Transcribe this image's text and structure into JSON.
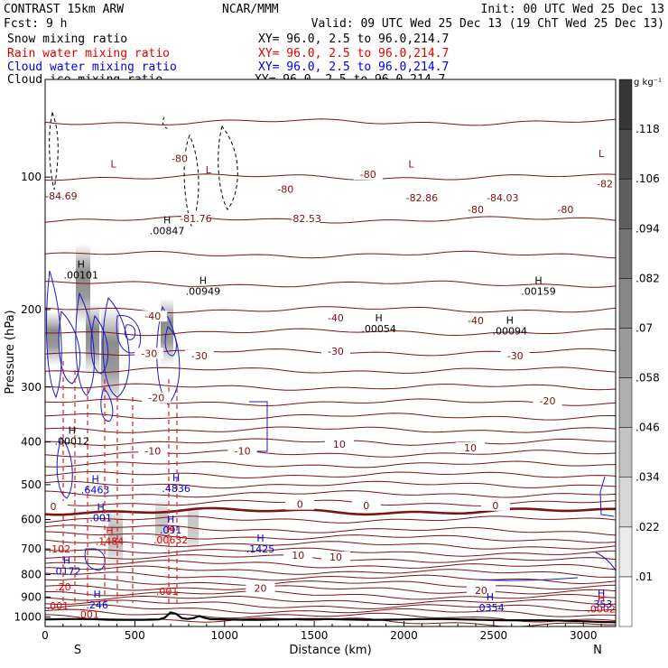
{
  "header": {
    "title": "CONTRAST 15km ARW",
    "forecast": "Fcst:    9 h",
    "center": "NCAR/MMM",
    "init": "Init: 00 UTC Wed 25 Dec 13",
    "valid": "Valid: 09 UTC Wed 25 Dec 13 (19 ChT Wed 25 Dec 13)",
    "fields": [
      {
        "name": "Snow mixing ratio",
        "xy": "XY=  96.0,  2.5 to  96.0,214.7",
        "color": "#000000"
      },
      {
        "name": "Rain water mixing ratio",
        "xy": "XY=  96.0,  2.5 to  96.0,214.7",
        "color": "#e00000"
      },
      {
        "name": "Cloud water mixing ratio",
        "xy": "XY=  96.0,  2.5 to  96.0,214.7",
        "color": "#0000dd"
      },
      {
        "name": "Cloud ice mixing ratio",
        "xy": "XY=  96.0,  2.5 to  96.0,214.7",
        "color": "#000000"
      }
    ]
  },
  "colorbar": {
    "unit": "g kg⁻¹",
    "levels": [
      ".01",
      ".022",
      ".034",
      ".046",
      ".058",
      ".07",
      ".082",
      ".094",
      ".106",
      ".118"
    ]
  },
  "chart_data": {
    "type": "contour-cross-section",
    "xlabel": "Distance (km)",
    "ylabel": "Pressure (hPa)",
    "xlim": [
      0,
      3180
    ],
    "ylim": [
      1050,
      60
    ],
    "xticks": [
      0,
      500,
      1000,
      1500,
      2000,
      2500,
      3000
    ],
    "yticks": [
      100,
      200,
      300,
      400,
      500,
      600,
      700,
      800,
      900,
      1000
    ],
    "endpoints": {
      "left": "S",
      "right": "N"
    },
    "temperature_contours": [
      {
        "label": "-80",
        "p": 100
      },
      {
        "label": "-40",
        "p": 210
      },
      {
        "label": "-30",
        "p": 255
      },
      {
        "label": "-20",
        "p": 320
      },
      {
        "label": "-10",
        "p": 415
      },
      {
        "label": "0",
        "p": 560,
        "bold": true
      },
      {
        "label": "10",
        "p": 735
      },
      {
        "label": "20",
        "p": 860
      }
    ],
    "temperature_labels": [
      {
        "text": "-84.69",
        "x": 90,
        "p": 112,
        "color": "#7a1010"
      },
      {
        "text": "-81.76",
        "x": 840,
        "p": 126,
        "color": "#7a1010"
      },
      {
        "text": "-82.53",
        "x": 1450,
        "p": 126,
        "color": "#7a1010"
      },
      {
        "text": "-82.86",
        "x": 2100,
        "p": 113,
        "color": "#7a1010"
      },
      {
        "text": "-84.03",
        "x": 2550,
        "p": 113,
        "color": "#7a1010"
      },
      {
        "text": "-82",
        "x": 3120,
        "p": 105,
        "color": "#7a1010"
      },
      {
        "text": "-80",
        "x": 750,
        "p": 92,
        "color": "#7a1010"
      },
      {
        "text": "-80",
        "x": 1340,
        "p": 108,
        "color": "#7a1010"
      },
      {
        "text": "-80",
        "x": 1800,
        "p": 100,
        "color": "#7a1010"
      },
      {
        "text": "-80",
        "x": 2400,
        "p": 120,
        "color": "#7a1010"
      },
      {
        "text": "-80",
        "x": 2900,
        "p": 120,
        "color": "#7a1010"
      },
      {
        "text": "-40",
        "x": 600,
        "p": 210,
        "color": "#7a1010"
      },
      {
        "text": "-40",
        "x": 1620,
        "p": 212,
        "color": "#7a1010"
      },
      {
        "text": "-40",
        "x": 2400,
        "p": 215,
        "color": "#7a1010"
      },
      {
        "text": "-30",
        "x": 580,
        "p": 255,
        "color": "#7a1010"
      },
      {
        "text": "-30",
        "x": 860,
        "p": 258,
        "color": "#7a1010"
      },
      {
        "text": "-30",
        "x": 1620,
        "p": 252,
        "color": "#7a1010"
      },
      {
        "text": "-30",
        "x": 2620,
        "p": 258,
        "color": "#7a1010"
      },
      {
        "text": "-20",
        "x": 620,
        "p": 322,
        "color": "#7a1010"
      },
      {
        "text": "-20",
        "x": 2800,
        "p": 327,
        "color": "#7a1010"
      },
      {
        "text": "-10",
        "x": 600,
        "p": 425,
        "color": "#7a1010"
      },
      {
        "text": "-10",
        "x": 1100,
        "p": 425,
        "color": "#7a1010"
      },
      {
        "text": "10",
        "x": 1640,
        "p": 410,
        "color": "#7a1010"
      },
      {
        "text": "10",
        "x": 2370,
        "p": 418,
        "color": "#7a1010"
      },
      {
        "text": "0",
        "x": 45,
        "p": 568,
        "color": "#7a1010"
      },
      {
        "text": "0",
        "x": 1420,
        "p": 562,
        "color": "#7a1010"
      },
      {
        "text": "0",
        "x": 1790,
        "p": 565,
        "color": "#7a1010"
      },
      {
        "text": "0",
        "x": 2510,
        "p": 565,
        "color": "#7a1010"
      },
      {
        "text": "10",
        "x": 1410,
        "p": 733,
        "color": "#7a1010"
      },
      {
        "text": "10",
        "x": 1620,
        "p": 740,
        "color": "#7a1010"
      },
      {
        "text": "20",
        "x": 1200,
        "p": 872,
        "color": "#7a1010"
      },
      {
        "text": "20",
        "x": 2430,
        "p": 882,
        "color": "#7a1010"
      }
    ],
    "maxima": [
      {
        "label": "H",
        "value": ".00101",
        "x": 200,
        "p": 170,
        "color": "#000000"
      },
      {
        "label": "H",
        "value": ".00847",
        "x": 680,
        "p": 135,
        "color": "#000000"
      },
      {
        "label": "H",
        "value": ".00949",
        "x": 880,
        "p": 185,
        "color": "#000000"
      },
      {
        "label": "H",
        "value": ".00054",
        "x": 1860,
        "p": 225,
        "color": "#000000"
      },
      {
        "label": "H",
        "value": ".00094",
        "x": 2590,
        "p": 228,
        "color": "#000000"
      },
      {
        "label": "H",
        "value": ".00159",
        "x": 2750,
        "p": 185,
        "color": "#000000"
      },
      {
        "label": "H",
        "value": ".00012",
        "x": 150,
        "p": 405,
        "color": "#000000"
      },
      {
        "label": "H",
        "value": ".6463",
        "x": 280,
        "p": 523,
        "color": "#0000dd"
      },
      {
        "label": "H",
        "value": ".4836",
        "x": 730,
        "p": 520,
        "color": "#0000dd"
      },
      {
        "label": "H",
        "value": ".001",
        "x": 310,
        "p": 605,
        "color": "#0000dd"
      },
      {
        "label": "H",
        "value": ".091",
        "x": 700,
        "p": 645,
        "color": "#0000dd"
      },
      {
        "label": "H",
        "value": ".1484",
        "x": 360,
        "p": 685,
        "color": "#e00000"
      },
      {
        "label": "H",
        "value": ".00632",
        "x": 700,
        "p": 680,
        "color": "#e00000"
      },
      {
        "label": "H",
        "value": ".1425",
        "x": 1200,
        "p": 713,
        "color": "#0000dd"
      },
      {
        "label": "",
        "value": ".102",
        "x": 80,
        "p": 712,
        "color": "#e00000"
      },
      {
        "label": "H",
        "value": ".0172",
        "x": 120,
        "p": 800,
        "color": "#0000dd"
      },
      {
        "label": "",
        "value": ".20",
        "x": 100,
        "p": 870,
        "color": "#e00000"
      },
      {
        "label": "",
        "value": ".001",
        "x": 680,
        "p": 890,
        "color": "#e00000"
      },
      {
        "label": "H",
        "value": ".246",
        "x": 290,
        "p": 955,
        "color": "#0000dd"
      },
      {
        "label": "",
        "value": ".001",
        "x": 70,
        "p": 960,
        "color": "#e00000"
      },
      {
        "label": "",
        "value": ".001",
        "x": 240,
        "p": 1005,
        "color": "#e00000"
      },
      {
        "label": "H",
        "value": ".0354",
        "x": 2480,
        "p": 968,
        "color": "#0000dd"
      },
      {
        "label": "H",
        "value": ".353",
        "x": 3100,
        "p": 950,
        "color": "#0000dd"
      },
      {
        "label": "H",
        "value": ".0002",
        "x": 3100,
        "p": 975,
        "color": "#e00000"
      }
    ],
    "minima": [
      {
        "label": "L",
        "x": 380,
        "p": 95
      },
      {
        "label": "L",
        "x": 910,
        "p": 98
      },
      {
        "label": "L",
        "x": 2040,
        "p": 95
      },
      {
        "label": "L",
        "x": 3100,
        "p": 90
      }
    ]
  }
}
